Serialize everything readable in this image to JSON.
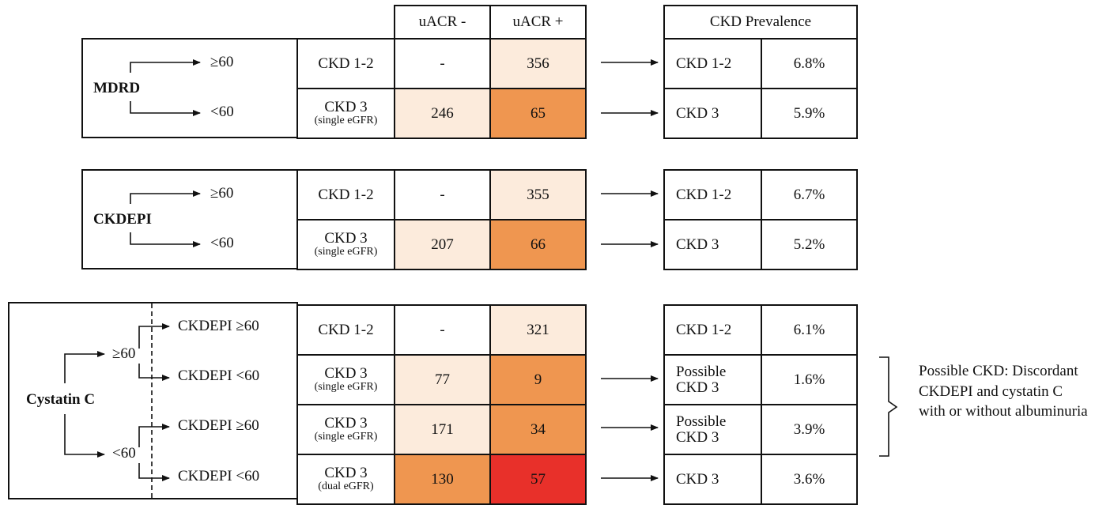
{
  "colors": {
    "none": "#ffffff",
    "light": "#fcebdc",
    "orange": "#ef9650",
    "red": "#e8302a"
  },
  "header": {
    "col_uacr_neg": "uACR -",
    "col_uacr_pos": "uACR +",
    "prevalence": "CKD Prevalence"
  },
  "mdrd": {
    "name": "MDRD",
    "branch_hi": "≥60",
    "branch_lo": "<60",
    "rows": [
      {
        "stage": "CKD 1-2",
        "stage_sub": "",
        "neg": "-",
        "pos": "356",
        "neg_color": "none",
        "pos_color": "light",
        "prev_label": "CKD 1-2",
        "prev_value": "6.8%"
      },
      {
        "stage": "CKD 3",
        "stage_sub": "(single eGFR)",
        "neg": "246",
        "pos": "65",
        "neg_color": "light",
        "pos_color": "orange",
        "prev_label": "CKD 3",
        "prev_value": "5.9%"
      }
    ]
  },
  "ckdepi": {
    "name": "CKDEPI",
    "branch_hi": "≥60",
    "branch_lo": "<60",
    "rows": [
      {
        "stage": "CKD 1-2",
        "stage_sub": "",
        "neg": "-",
        "pos": "355",
        "neg_color": "none",
        "pos_color": "light",
        "prev_label": "CKD 1-2",
        "prev_value": "6.7%"
      },
      {
        "stage": "CKD 3",
        "stage_sub": "(single eGFR)",
        "neg": "207",
        "pos": "66",
        "neg_color": "light",
        "pos_color": "orange",
        "prev_label": "CKD 3",
        "prev_value": "5.2%"
      }
    ]
  },
  "cystatin": {
    "name": "Cystatin C",
    "branch_hi": "≥60",
    "branch_lo": "<60",
    "rows": [
      {
        "branch": "CKDEPI ≥60",
        "stage": "CKD 1-2",
        "stage_sub": "",
        "neg": "-",
        "pos": "321",
        "neg_color": "none",
        "pos_color": "light",
        "prev_label": "CKD 1-2",
        "prev_value": "6.1%"
      },
      {
        "branch": "CKDEPI <60",
        "stage": "CKD 3",
        "stage_sub": "(single eGFR)",
        "neg": "77",
        "pos": "9",
        "neg_color": "light",
        "pos_color": "orange",
        "prev_label": "Possible CKD 3",
        "prev_value": "1.6%"
      },
      {
        "branch": "CKDEPI ≥60",
        "stage": "CKD 3",
        "stage_sub": "(single eGFR)",
        "neg": "171",
        "pos": "34",
        "neg_color": "light",
        "pos_color": "orange",
        "prev_label": "Possible CKD 3",
        "prev_value": "3.9%"
      },
      {
        "branch": "CKDEPI <60",
        "stage": "CKD 3",
        "stage_sub": "(dual eGFR)",
        "neg": "130",
        "pos": "57",
        "neg_color": "orange",
        "pos_color": "red",
        "prev_label": "CKD 3",
        "prev_value": "3.6%"
      }
    ]
  },
  "note": "Possible CKD: Discordant CKDEPI and cystatin C with or without albuminuria"
}
